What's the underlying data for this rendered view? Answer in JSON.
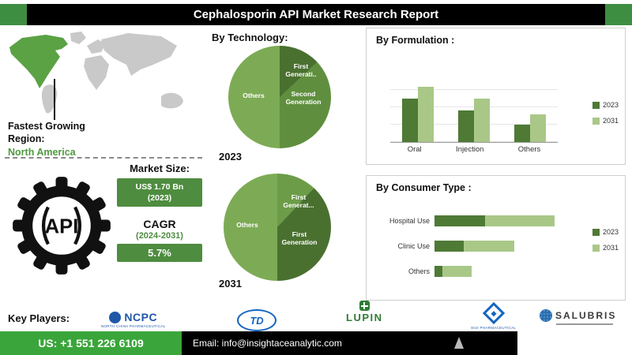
{
  "title": "Cephalosporin API Market Research Report",
  "region": {
    "label_line1": "Fastest Growing",
    "label_line2": "Region:",
    "value": "North America"
  },
  "market": {
    "size_label": "Market Size:",
    "size_line1": "US$ 1.70 Bn",
    "size_line2": "(2023)",
    "cagr_label": "CAGR",
    "cagr_period": "(2024-2031)",
    "cagr_value": "5.7%",
    "api_icon_text": "API"
  },
  "sections": {
    "technology_heading": "By Technology:",
    "formulation_heading": "By Formulation :",
    "consumer_heading": "By Consumer Type :",
    "key_players_label": "Key Players:"
  },
  "key_players": [
    {
      "name": "NCPC",
      "caption": "NORTH CHINA PHARMACEUTICAL"
    },
    {
      "name": "TD"
    },
    {
      "name": "LUPIN"
    },
    {
      "name": "SIUI",
      "caption": "SIUI PHARMACEUTICAL"
    },
    {
      "name": "SALUBRIS"
    }
  ],
  "footer": {
    "phone": "US: +1 551 226 6109",
    "email": "Email: info@insightaceanalytic.com"
  },
  "colors": {
    "dark_green": "#4e7a35",
    "light_green": "#a9c888",
    "brand_green": "#3aa53a",
    "map_highlight": "#5aa244"
  },
  "chart_data": [
    {
      "id": "technology_2023",
      "type": "pie",
      "year": "2023",
      "labels": [
        "First Generati..",
        "Second Generation",
        "Others"
      ],
      "values": [
        13,
        37,
        50
      ],
      "colors": [
        "#4a7030",
        "#5f8f3e",
        "#7dab55"
      ],
      "legend_position": "none"
    },
    {
      "id": "technology_2031",
      "type": "pie",
      "year": "2031",
      "labels": [
        "First Generat...",
        "First Generation",
        "Others"
      ],
      "values": [
        12,
        38,
        50
      ],
      "colors": [
        "#6d9c49",
        "#4a7030",
        "#7dab55"
      ],
      "legend_position": "none"
    },
    {
      "id": "formulation",
      "type": "bar",
      "title": "By Formulation :",
      "categories": [
        "Oral",
        "Injection",
        "Others"
      ],
      "series": [
        {
          "name": "2023",
          "color": "#4e7a35",
          "values": [
            62,
            45,
            25
          ]
        },
        {
          "name": "2031",
          "color": "#a9c888",
          "values": [
            80,
            62,
            40
          ]
        }
      ],
      "ylim": [
        0,
        100
      ],
      "grid": true,
      "legend_position": "right"
    },
    {
      "id": "consumer_type",
      "type": "bar-horizontal-stacked",
      "title": "By Consumer Type :",
      "categories": [
        "Hospital Use",
        "Clinic Use",
        "Others"
      ],
      "series": [
        {
          "name": "2023",
          "color": "#4e7a35",
          "values": [
            38,
            22,
            6
          ]
        },
        {
          "name": "2031",
          "color": "#a9c888",
          "values": [
            52,
            38,
            22
          ]
        }
      ],
      "xlim": [
        0,
        100
      ],
      "legend_position": "right"
    }
  ]
}
